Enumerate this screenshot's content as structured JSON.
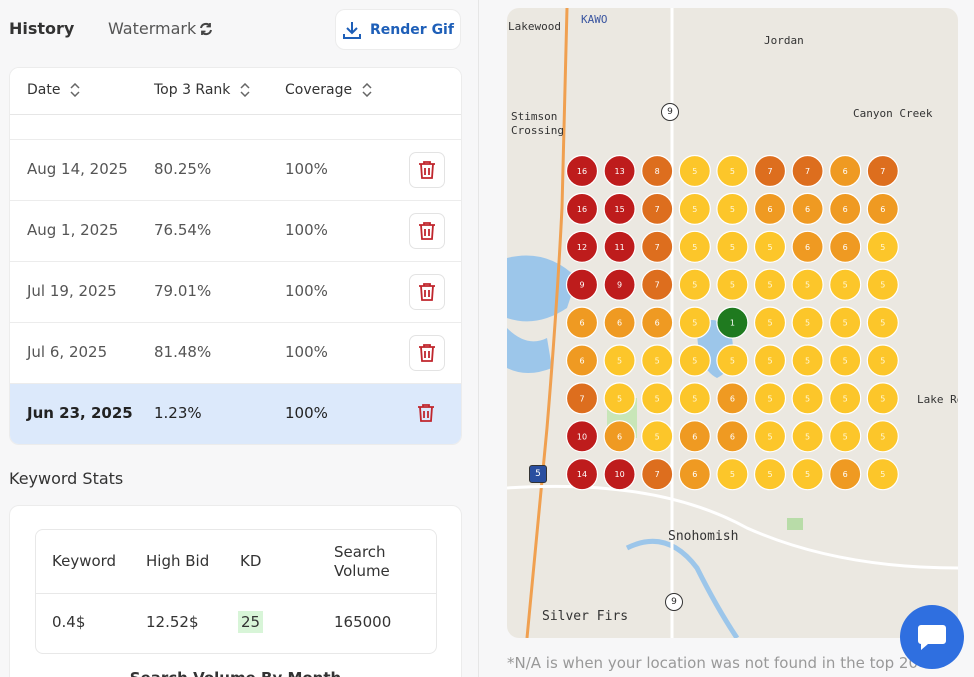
{
  "header": {
    "title": "History",
    "watermark": "Watermark",
    "render_button": "Render Gif"
  },
  "history_table": {
    "columns": [
      "Date",
      "Top 3 Rank",
      "Coverage"
    ],
    "rows": [
      [
        "Aug 14, 2025",
        "80.25%",
        "100%"
      ],
      [
        "Aug 1, 2025",
        "76.54%",
        "100%"
      ],
      [
        "Jul 19, 2025",
        "79.01%",
        "100%"
      ],
      [
        "Jul 6, 2025",
        "81.48%",
        "100%"
      ],
      [
        "Jun 23, 2025",
        "1.23%",
        "100%"
      ]
    ],
    "selected_row": 4
  },
  "keyword_stats": {
    "title": "Keyword Stats",
    "columns": [
      "Keyword",
      "High Bid",
      "KD",
      "Search Volume"
    ],
    "row": [
      "0.4$",
      "12.52$",
      "25",
      "165000"
    ],
    "chart_title": "Search Volume By Month"
  },
  "map": {
    "places": [
      "Lakewood",
      "KAWO",
      "Jordan",
      "Stimson Crossing",
      "Canyon Creek",
      "Snohomish",
      "Silver Firs",
      "Lake Roe"
    ],
    "route_shields": [
      "9",
      "5",
      "9"
    ],
    "rank_grid": [
      [
        16,
        13,
        8,
        5,
        5,
        7,
        7,
        6,
        7
      ],
      [
        16,
        15,
        7,
        5,
        5,
        6,
        6,
        6,
        6
      ],
      [
        12,
        11,
        7,
        5,
        5,
        5,
        6,
        6,
        5
      ],
      [
        9,
        9,
        7,
        5,
        5,
        5,
        5,
        5,
        5
      ],
      [
        6,
        6,
        6,
        5,
        1,
        5,
        5,
        5,
        5
      ],
      [
        6,
        5,
        5,
        5,
        5,
        5,
        5,
        5,
        5
      ],
      [
        7,
        5,
        5,
        5,
        6,
        5,
        5,
        5,
        5
      ],
      [
        10,
        6,
        5,
        6,
        6,
        5,
        5,
        5,
        5
      ],
      [
        14,
        10,
        7,
        6,
        5,
        5,
        5,
        6,
        5
      ]
    ]
  },
  "footnote": "*N/A is when your location was not found in the top 20"
}
